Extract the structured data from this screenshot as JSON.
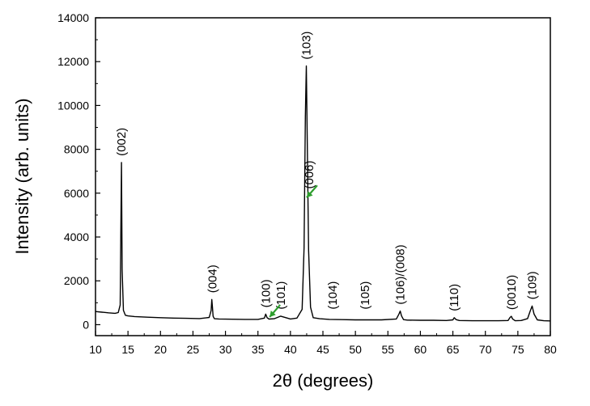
{
  "chart_data": {
    "type": "line",
    "title": "",
    "xlabel": "2θ (degrees)",
    "ylabel": "Intensity (arb. units)",
    "xlim": [
      10,
      80
    ],
    "ylim": [
      -500,
      14000
    ],
    "xticks": [
      10,
      15,
      20,
      25,
      30,
      35,
      40,
      45,
      50,
      55,
      60,
      65,
      70,
      75,
      80
    ],
    "yticks": [
      0,
      2000,
      4000,
      6000,
      8000,
      10000,
      12000,
      14000
    ],
    "grid": false,
    "series": [
      {
        "x": [
          10,
          11,
          12,
          13,
          13.5,
          13.8,
          13.9,
          14.0,
          14.1,
          14.3,
          14.6,
          15,
          16,
          18,
          20,
          22,
          24,
          26,
          27.5,
          27.8,
          27.9,
          28.0,
          28.1,
          28.3,
          29,
          31,
          33,
          35,
          36.0,
          36.2,
          36.4,
          36.7,
          37.5,
          38.5,
          40,
          41,
          41.8,
          42.1,
          42.3,
          42.45,
          42.6,
          42.8,
          43.1,
          43.5,
          44.5,
          46,
          48,
          50,
          52,
          54,
          56.3,
          56.7,
          56.9,
          57.1,
          57.4,
          58,
          60,
          62,
          64,
          65.0,
          65.2,
          65.5,
          66,
          68,
          70,
          72,
          73.5,
          73.8,
          74.0,
          74.2,
          74.6,
          75.5,
          76.5,
          76.9,
          77.2,
          77.5,
          78,
          79,
          80
        ],
        "y": [
          600,
          570,
          540,
          520,
          550,
          900,
          4200,
          7400,
          2500,
          650,
          430,
          400,
          370,
          340,
          320,
          300,
          290,
          280,
          330,
          650,
          1150,
          800,
          380,
          270,
          260,
          250,
          240,
          240,
          300,
          480,
          320,
          255,
          270,
          390,
          260,
          300,
          700,
          3500,
          9500,
          11800,
          8200,
          3400,
          800,
          320,
          270,
          240,
          230,
          220,
          220,
          220,
          260,
          480,
          620,
          400,
          230,
          210,
          200,
          200,
          190,
          220,
          320,
          230,
          190,
          180,
          180,
          180,
          190,
          330,
          380,
          260,
          180,
          190,
          280,
          620,
          850,
          480,
          220,
          180,
          170
        ]
      }
    ],
    "annotations": [
      {
        "text": "(002)",
        "x": 14.0,
        "y": 7400
      },
      {
        "text": "(004)",
        "x": 28.0,
        "y": 1150
      },
      {
        "text": "(100)",
        "x": 36.2,
        "y": 480
      },
      {
        "text": "(101)",
        "x": 38.5,
        "y": 400
      },
      {
        "text": "(103)",
        "x": 42.45,
        "y": 11800
      },
      {
        "text": "(006)",
        "x": 42.9,
        "y": 5900
      },
      {
        "text": "(104)",
        "x": 46.5,
        "y": 400
      },
      {
        "text": "(105)",
        "x": 51.5,
        "y": 400
      },
      {
        "text": "(106)/(008)",
        "x": 56.9,
        "y": 620
      },
      {
        "text": "(110)",
        "x": 65.2,
        "y": 320
      },
      {
        "text": "(0010)",
        "x": 74.0,
        "y": 380
      },
      {
        "text": "(109)",
        "x": 77.2,
        "y": 850
      }
    ],
    "arrows": [
      {
        "points_to": "(101)",
        "x": 36.8,
        "y": 350,
        "color": "#2e9e2e"
      },
      {
        "points_to": "(006)",
        "x": 42.5,
        "y": 5800,
        "color": "#2e9e2e"
      }
    ],
    "colors": {
      "line": "#000000",
      "arrow": "#2e9e2e"
    }
  }
}
